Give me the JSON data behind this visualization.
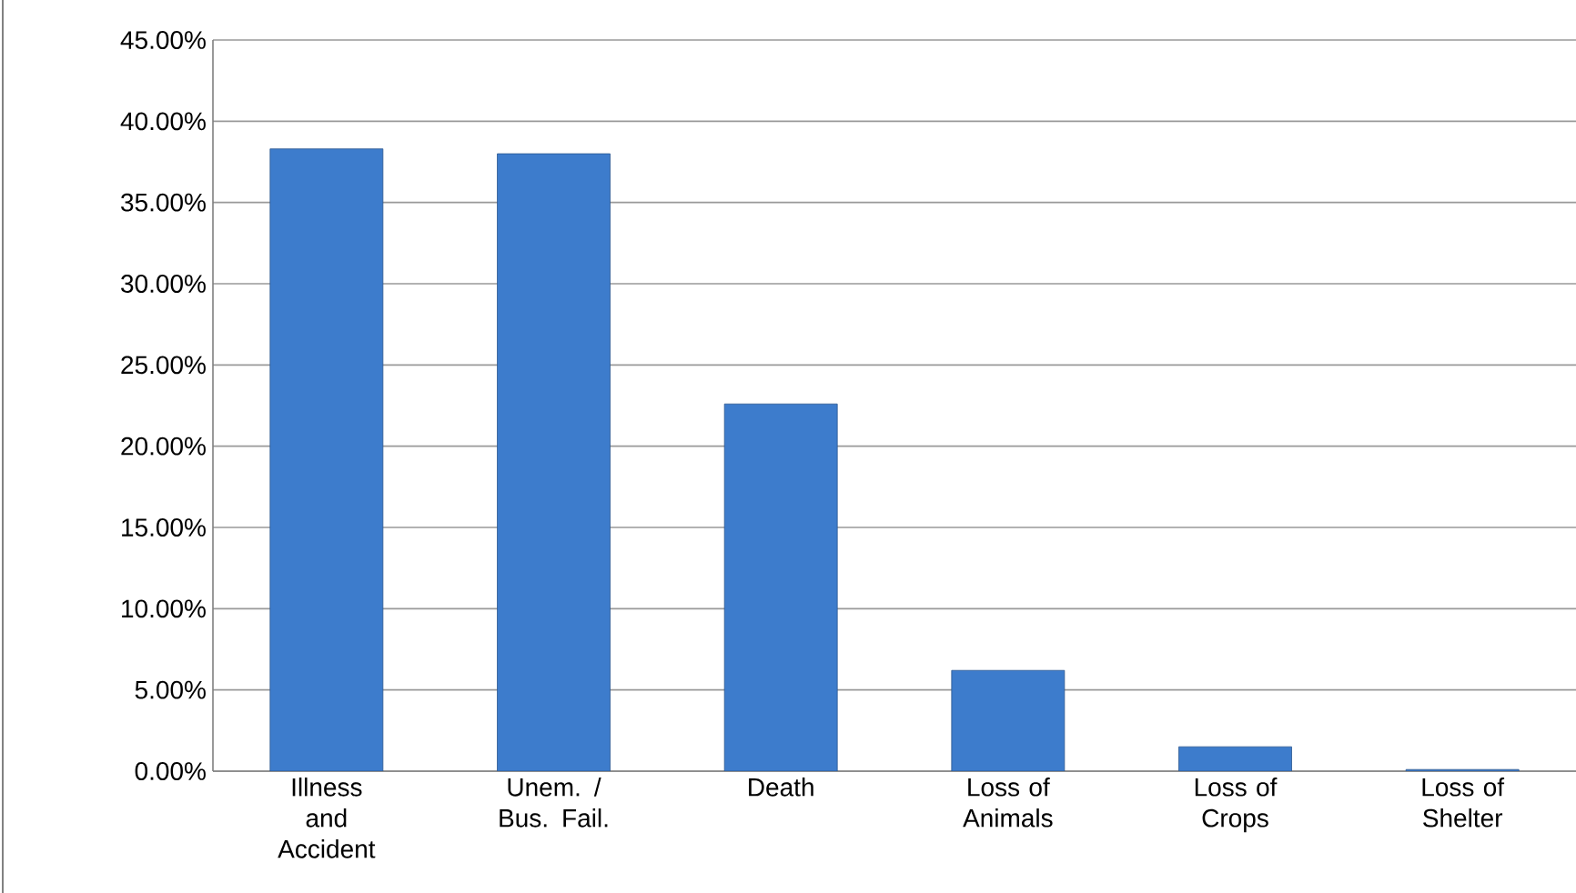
{
  "chart_data": {
    "type": "bar",
    "categories": [
      "Illness and Accident",
      "Unem. / Bus. Fail.",
      "Death",
      "Loss of Animals",
      "Loss of Crops",
      "Loss of Shelter"
    ],
    "values": [
      38.3,
      38.0,
      22.6,
      6.2,
      1.5,
      0.1
    ],
    "color": "#3d7ccc",
    "ylim": [
      0,
      45
    ],
    "yticks": [
      {
        "value": 0,
        "label": "0.00%"
      },
      {
        "value": 5,
        "label": "5.00%"
      },
      {
        "value": 10,
        "label": "10.00%"
      },
      {
        "value": 15,
        "label": "15.00%"
      },
      {
        "value": 20,
        "label": "20.00%"
      },
      {
        "value": 25,
        "label": "25.00%"
      },
      {
        "value": 30,
        "label": "30.00%"
      },
      {
        "value": 35,
        "label": "35.00%"
      },
      {
        "value": 40,
        "label": "40.00%"
      },
      {
        "value": 45,
        "label": "45.00%"
      }
    ],
    "grid": "y"
  }
}
